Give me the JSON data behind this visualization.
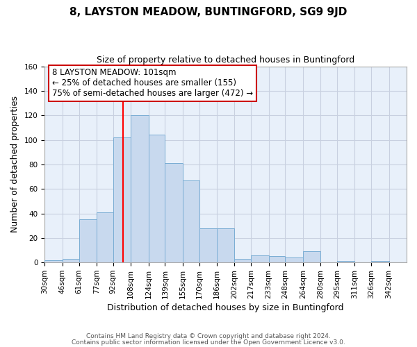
{
  "title": "8, LAYSTON MEADOW, BUNTINGFORD, SG9 9JD",
  "subtitle": "Size of property relative to detached houses in Buntingford",
  "xlabel": "Distribution of detached houses by size in Buntingford",
  "ylabel": "Number of detached properties",
  "bar_values": [
    2,
    3,
    35,
    41,
    102,
    120,
    104,
    81,
    67,
    28,
    28,
    3,
    6,
    5,
    4,
    9,
    0,
    1,
    0,
    1
  ],
  "bin_labels": [
    "30sqm",
    "46sqm",
    "61sqm",
    "77sqm",
    "92sqm",
    "108sqm",
    "124sqm",
    "139sqm",
    "155sqm",
    "170sqm",
    "186sqm",
    "202sqm",
    "217sqm",
    "233sqm",
    "248sqm",
    "264sqm",
    "280sqm",
    "295sqm",
    "311sqm",
    "326sqm",
    "342sqm"
  ],
  "bin_edges": [
    30,
    46,
    61,
    77,
    92,
    108,
    124,
    139,
    155,
    170,
    186,
    202,
    217,
    233,
    248,
    264,
    280,
    295,
    311,
    326,
    342
  ],
  "bar_color": "#c8d9ee",
  "bar_edge_color": "#7aadd4",
  "red_line_x": 101,
  "ylim": [
    0,
    160
  ],
  "yticks": [
    0,
    20,
    40,
    60,
    80,
    100,
    120,
    140,
    160
  ],
  "annotation_title": "8 LAYSTON MEADOW: 101sqm",
  "annotation_line1": "← 25% of detached houses are smaller (155)",
  "annotation_line2": "75% of semi-detached houses are larger (472) →",
  "footnote1": "Contains HM Land Registry data © Crown copyright and database right 2024.",
  "footnote2": "Contains public sector information licensed under the Open Government Licence v3.0.",
  "fig_bg_color": "#ffffff",
  "plot_bg_color": "#e8f0fa",
  "grid_color": "#c8d0e0",
  "title_fontsize": 11,
  "subtitle_fontsize": 9,
  "xlabel_fontsize": 9,
  "ylabel_fontsize": 9,
  "tick_fontsize": 7.5,
  "annot_fontsize": 8.5
}
